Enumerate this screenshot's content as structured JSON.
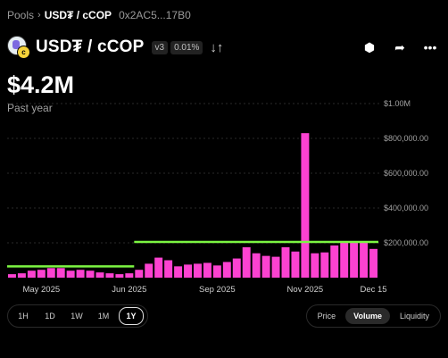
{
  "breadcrumb": {
    "pools": "Pools",
    "separator": "›",
    "pair": "USD₮ / cCOP",
    "address": "0x2AC5...17B0"
  },
  "header": {
    "pair": "USD₮ / cCOP",
    "version": "v3",
    "fee": "0.01%",
    "swap_icon": "↓↑",
    "logo_b_letter": "c"
  },
  "actions": [
    {
      "name": "share-network-icon",
      "glyph": "⬢"
    },
    {
      "name": "share-arrow-icon",
      "glyph": "➦"
    },
    {
      "name": "more-icon",
      "glyph": "•••"
    }
  ],
  "summary": {
    "value": "$4.2M",
    "period": "Past year"
  },
  "colors": {
    "bar": "#fc42d1",
    "line": "#7cf542",
    "grid": "#2a2a2a",
    "axis_text": "#a0a0a0"
  },
  "chart_data": {
    "type": "bar",
    "title": "",
    "ylabel": "",
    "xlabel": "",
    "y_ticks": [
      "$1.00M",
      "$800,000.00",
      "$600,000.00",
      "$400,000.00",
      "$200,000.00"
    ],
    "y_tick_values": [
      1000000,
      800000,
      600000,
      400000,
      200000
    ],
    "ylim": [
      0,
      1000000
    ],
    "x_tick_labels": [
      "May 2025",
      "Jun 2025",
      "Sep 2025",
      "Nov 2025",
      "Dec 15"
    ],
    "x_tick_index": [
      3,
      12,
      21,
      30,
      37
    ],
    "values": [
      20000,
      25000,
      40000,
      45000,
      55000,
      55000,
      40000,
      45000,
      40000,
      30000,
      25000,
      20000,
      25000,
      45000,
      80000,
      115000,
      100000,
      65000,
      75000,
      80000,
      85000,
      70000,
      90000,
      110000,
      175000,
      140000,
      125000,
      120000,
      175000,
      150000,
      830000,
      140000,
      145000,
      185000,
      200000,
      210000,
      210000,
      165000
    ],
    "reference_lines": [
      {
        "from_index": 0,
        "to_index": 12,
        "value": 65000
      },
      {
        "from_index": 13,
        "to_index": 37,
        "value": 205000
      }
    ]
  },
  "time_ranges": [
    "1H",
    "1D",
    "1W",
    "1M",
    "1Y"
  ],
  "time_active": "1Y",
  "chart_types": [
    "Price",
    "Volume",
    "Liquidity"
  ],
  "chart_type_active": "Volume"
}
